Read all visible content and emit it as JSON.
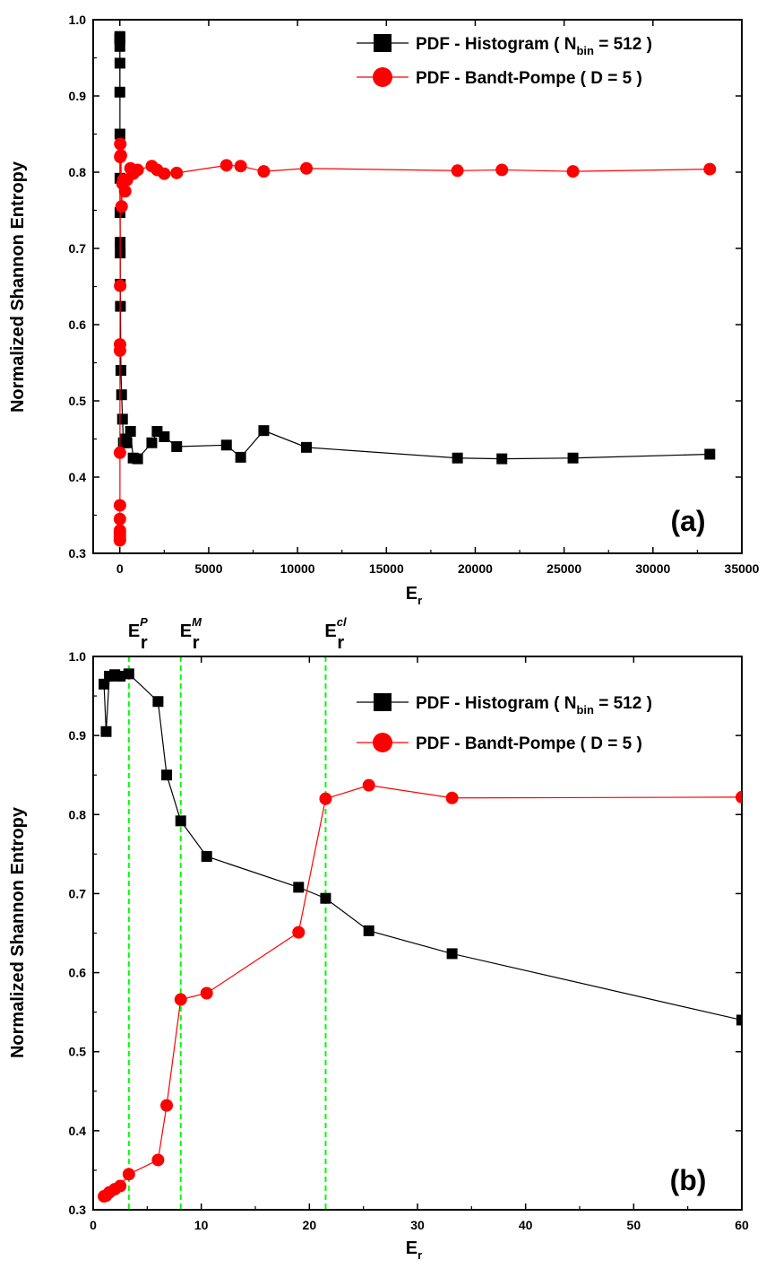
{
  "chart_data": [
    {
      "type": "line",
      "panel_label": "(a)",
      "xlabel": "E",
      "xlabel_sub": "r",
      "ylabel": "Normalized  Shannon  Entropy",
      "xlim": [
        -1500,
        35000
      ],
      "ylim": [
        0.3,
        1.0
      ],
      "xticks": [
        0,
        5000,
        10000,
        15000,
        20000,
        25000,
        30000,
        35000
      ],
      "yticks": [
        0.3,
        0.4,
        0.5,
        0.6,
        0.7,
        0.8,
        0.9,
        1.0
      ],
      "xtick_labels": [
        "0",
        "5000",
        "10000",
        "15000",
        "20000",
        "25000",
        "30000",
        "35000"
      ],
      "ytick_labels": [
        "0.3",
        "0.4",
        "0.5",
        "0.6",
        "0.7",
        "0.8",
        "0.9",
        "1.0"
      ],
      "legend_position": "top-right",
      "series": [
        {
          "legend_main": "PDF - Histogram ( N",
          "legend_sub": "bin",
          "legend_tail": " = 512 )",
          "color": "#000000",
          "marker": "square",
          "x": [
            1,
            1.2,
            1.5,
            2,
            2.5,
            3.3,
            6,
            6.8,
            8.1,
            10.5,
            19,
            21.5,
            25.5,
            33.2,
            60,
            100,
            150,
            200,
            300,
            400,
            600,
            750,
            1000,
            1800,
            2100,
            2500,
            3200,
            6000,
            6800,
            8100,
            10500,
            19000,
            21500,
            25500,
            33200
          ],
          "y": [
            0.965,
            0.905,
            0.975,
            0.977,
            0.975,
            0.978,
            0.943,
            0.85,
            0.792,
            0.747,
            0.708,
            0.694,
            0.653,
            0.624,
            0.54,
            0.508,
            0.476,
            0.445,
            0.45,
            0.445,
            0.46,
            0.425,
            0.424,
            0.445,
            0.46,
            0.453,
            0.44,
            0.442,
            0.426,
            0.461,
            0.439,
            0.425,
            0.424,
            0.425,
            0.43
          ]
        },
        {
          "legend_main": "PDF - Bandt-Pompe ( D = 5 )",
          "legend_sub": "",
          "legend_tail": "",
          "color": "#ff0000",
          "marker": "circle",
          "x": [
            1,
            1.2,
            1.5,
            2,
            2.5,
            3.3,
            6,
            6.8,
            8.1,
            10.5,
            19,
            21.5,
            25.5,
            33.2,
            60,
            100,
            150,
            200,
            300,
            400,
            600,
            750,
            1000,
            1800,
            2100,
            2500,
            3200,
            6000,
            6800,
            8100,
            10500,
            19000,
            21500,
            25500,
            33200
          ],
          "y": [
            0.317,
            0.318,
            0.322,
            0.326,
            0.33,
            0.345,
            0.363,
            0.432,
            0.566,
            0.574,
            0.651,
            0.82,
            0.837,
            0.821,
            0.822,
            0.755,
            0.785,
            0.79,
            0.775,
            0.79,
            0.805,
            0.798,
            0.803,
            0.808,
            0.803,
            0.798,
            0.799,
            0.809,
            0.808,
            0.801,
            0.805,
            0.802,
            0.803,
            0.801,
            0.804
          ]
        }
      ]
    },
    {
      "type": "line",
      "panel_label": "(b)",
      "xlabel": "E",
      "xlabel_sub": "r",
      "ylabel": "Normalized  Shannon  Entropy",
      "xlim": [
        0,
        60
      ],
      "ylim": [
        0.3,
        1.0
      ],
      "xticks": [
        0,
        10,
        20,
        30,
        40,
        50,
        60
      ],
      "yticks": [
        0.3,
        0.4,
        0.5,
        0.6,
        0.7,
        0.8,
        0.9,
        1.0
      ],
      "xtick_labels": [
        "0",
        "10",
        "20",
        "30",
        "40",
        "50",
        "60"
      ],
      "ytick_labels": [
        "0.3",
        "0.4",
        "0.5",
        "0.6",
        "0.7",
        "0.8",
        "0.9",
        "1.0"
      ],
      "legend_position": "top-right",
      "vlines": [
        {
          "x": 3.3,
          "label": "E",
          "sub": "r",
          "sup": "P"
        },
        {
          "x": 8.1,
          "label": "E",
          "sub": "r",
          "sup": "M"
        },
        {
          "x": 21.5,
          "label": "E",
          "sub": "r",
          "sup": "cl"
        }
      ],
      "vline_color": "#00ff00",
      "series": [
        {
          "legend_main": "PDF - Histogram ( N",
          "legend_sub": "bin",
          "legend_tail": " = 512 )",
          "color": "#000000",
          "marker": "square",
          "x": [
            1,
            1.2,
            1.5,
            2,
            2.5,
            3.3,
            6,
            6.8,
            8.1,
            10.5,
            19,
            21.5,
            25.5,
            33.2,
            60
          ],
          "y": [
            0.965,
            0.905,
            0.975,
            0.977,
            0.975,
            0.978,
            0.943,
            0.85,
            0.792,
            0.747,
            0.708,
            0.694,
            0.653,
            0.624,
            0.54
          ]
        },
        {
          "legend_main": "PDF - Bandt-Pompe ( D = 5 )",
          "legend_sub": "",
          "legend_tail": "",
          "color": "#ff0000",
          "marker": "circle",
          "x": [
            1,
            1.2,
            1.5,
            2,
            2.5,
            3.3,
            6,
            6.8,
            8.1,
            10.5,
            19,
            21.5,
            25.5,
            33.2,
            60
          ],
          "y": [
            0.317,
            0.318,
            0.322,
            0.326,
            0.33,
            0.345,
            0.363,
            0.432,
            0.566,
            0.574,
            0.651,
            0.82,
            0.837,
            0.821,
            0.822
          ]
        }
      ]
    }
  ]
}
